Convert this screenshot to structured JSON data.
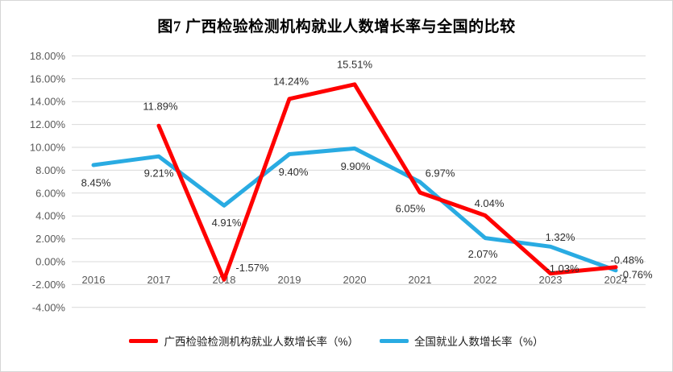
{
  "title": "图7 广西检验检测机构就业人数增长率与全国的比较",
  "chart_data": {
    "type": "line",
    "categories": [
      "2016",
      "2017",
      "2018",
      "2019",
      "2020",
      "2021",
      "2022",
      "2023",
      "2024"
    ],
    "series": [
      {
        "name": "广西检验检测机构就业人数增长率（%）",
        "color": "#FF0000",
        "values": [
          null,
          11.89,
          -1.57,
          14.24,
          15.51,
          6.05,
          4.04,
          -1.03,
          -0.48
        ]
      },
      {
        "name": "全国就业人数增长率（%）",
        "color": "#29ABE2",
        "values": [
          8.45,
          9.21,
          4.91,
          9.4,
          9.9,
          6.97,
          2.07,
          1.32,
          -0.76
        ]
      }
    ],
    "xlabel": "",
    "ylabel": "",
    "ylim": [
      -4,
      18
    ],
    "ytick_step": 2,
    "ytick_format": "0.00%",
    "grid": true,
    "data_labels": true,
    "legend_position": "bottom"
  },
  "colors": {
    "gridline": "#D9D9D9",
    "tick_label": "#595959",
    "data_label": "#2e2e2e"
  }
}
